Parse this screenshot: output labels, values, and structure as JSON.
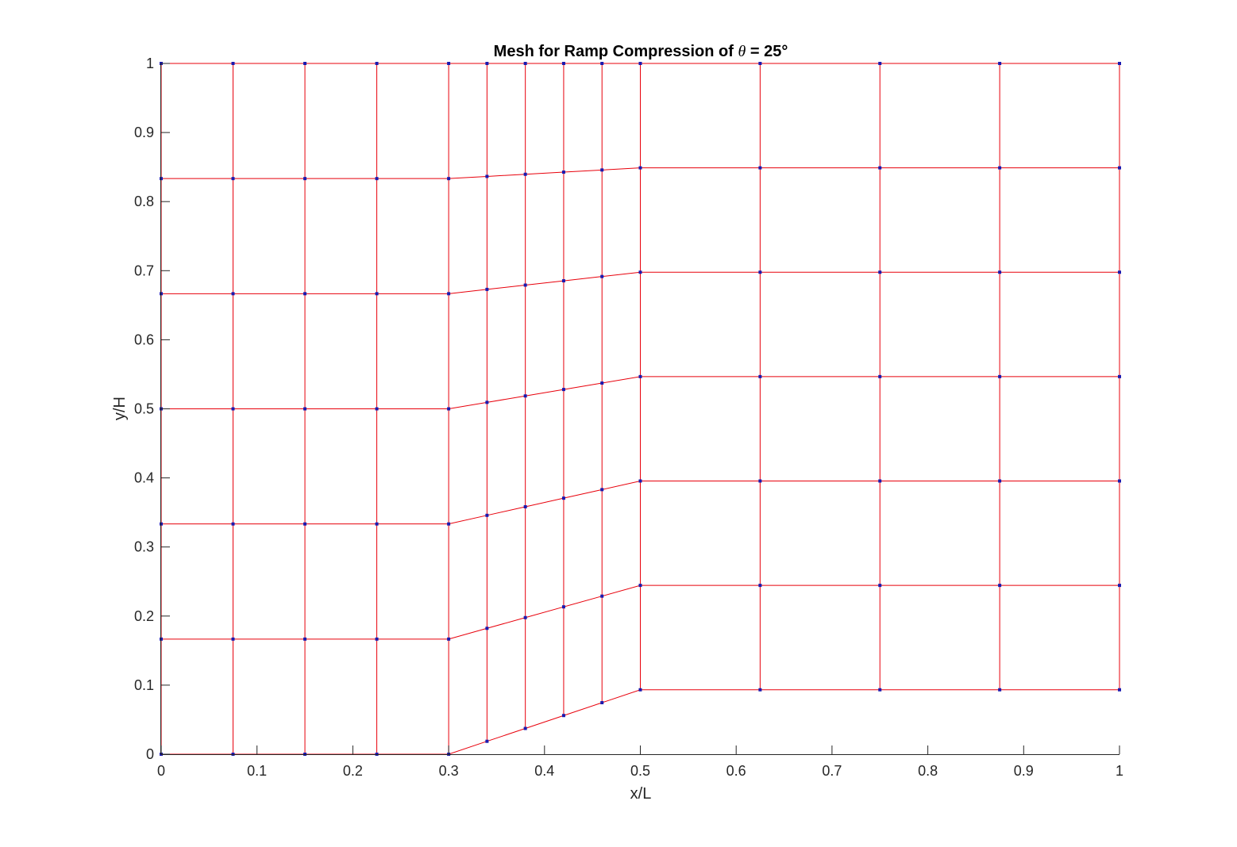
{
  "chart_data": {
    "type": "line",
    "title_prefix": "Mesh for Ramp Compression of ",
    "title_symbol": "θ",
    "title_suffix": " = 25°",
    "xlabel": "x/L",
    "ylabel": "y/H",
    "xlim": [
      0,
      1
    ],
    "ylim": [
      0,
      1
    ],
    "xticks": [
      0,
      0.1,
      0.2,
      0.3,
      0.4,
      0.5,
      0.6,
      0.7,
      0.8,
      0.9,
      1
    ],
    "xtick_labels": [
      "0",
      "0.1",
      "0.2",
      "0.3",
      "0.4",
      "0.5",
      "0.6",
      "0.7",
      "0.8",
      "0.9",
      "1"
    ],
    "yticks": [
      0,
      0.1,
      0.2,
      0.3,
      0.4,
      0.5,
      0.6,
      0.7,
      0.8,
      0.9,
      1
    ],
    "ytick_labels": [
      "0",
      "0.1",
      "0.2",
      "0.3",
      "0.4",
      "0.5",
      "0.6",
      "0.7",
      "0.8",
      "0.9",
      "1"
    ],
    "grid": false,
    "line_color": "#e8000b",
    "node_color": "#1a1ab0",
    "ramp_angle_deg": 25,
    "mesh_x": [
      0,
      0.075,
      0.15,
      0.225,
      0.3,
      0.34,
      0.38,
      0.42,
      0.46,
      0.5,
      0.625,
      0.75,
      0.875,
      1
    ],
    "wall_y": [
      0,
      0,
      0,
      0,
      0,
      0.0187,
      0.0373,
      0.056,
      0.0746,
      0.0933,
      0.0933,
      0.0933,
      0.0933,
      0.0933
    ],
    "rows": 6
  }
}
